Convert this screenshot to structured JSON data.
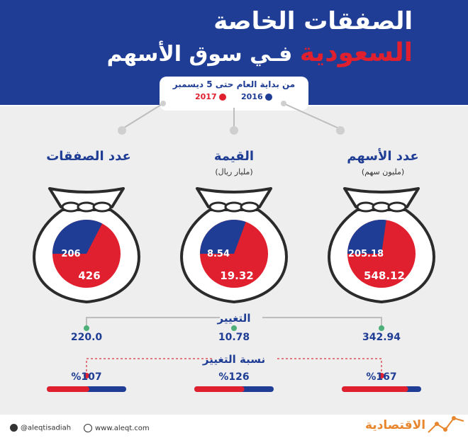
{
  "header": {
    "title_line1": "الصفقات الخاصة",
    "title_line2_prefix": "فـي سوق الأسهم",
    "title_line2_highlight": "السعودية",
    "period": "من بداية العام حتى 5 ديسمبر",
    "legend": [
      {
        "label": "2017",
        "color": "#e0202f"
      },
      {
        "label": "2016",
        "color": "#1f3d94"
      }
    ]
  },
  "labels": {
    "change": "التغيير",
    "change_pct": "نسبة التغيير"
  },
  "chart_data": [
    {
      "type": "pie",
      "title": "عدد الأسهم",
      "unit": "(مليون سهم)",
      "series": [
        {
          "name": "2016",
          "value": 205.18,
          "color": "#1f3d94"
        },
        {
          "name": "2017",
          "value": 548.12,
          "color": "#e0202f"
        }
      ],
      "change": "342.94",
      "change_pct": "%167",
      "change_pct_value": 167
    },
    {
      "type": "pie",
      "title": "القيمة",
      "unit": "(مليار ريال)",
      "series": [
        {
          "name": "2016",
          "value": 8.54,
          "color": "#1f3d94"
        },
        {
          "name": "2017",
          "value": 19.32,
          "color": "#e0202f"
        }
      ],
      "change": "10.78",
      "change_pct": "%126",
      "change_pct_value": 126
    },
    {
      "type": "pie",
      "title": "عدد الصفقات",
      "unit": "",
      "series": [
        {
          "name": "2016",
          "value": 206,
          "color": "#1f3d94"
        },
        {
          "name": "2017",
          "value": 426,
          "color": "#e0202f"
        }
      ],
      "change": "220.0",
      "change_pct": "%107",
      "change_pct_value": 107
    }
  ],
  "footer": {
    "twitter": "@aleqtisadiah",
    "website": "www.aleqt.com",
    "brand": "الاقتصادية"
  }
}
